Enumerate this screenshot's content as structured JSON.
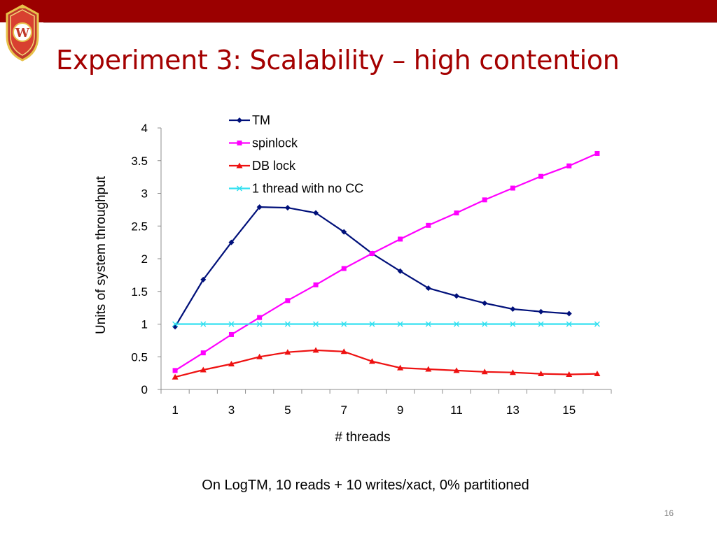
{
  "slide": {
    "title": "Experiment 3: Scalability – high contention",
    "caption": "On LogTM, 10 reads + 10 writes/xact, 0% partitioned",
    "page_number": "16",
    "logo_text": "W"
  },
  "colors": {
    "top_bar": "#9b0000",
    "title": "#a40000"
  },
  "chart_data": {
    "type": "line",
    "title": "",
    "xlabel": "# threads",
    "ylabel": "Units of system throughput",
    "x": [
      1,
      2,
      3,
      4,
      5,
      6,
      7,
      8,
      9,
      10,
      11,
      12,
      13,
      14,
      15,
      16
    ],
    "xticks": [
      1,
      3,
      5,
      7,
      9,
      11,
      13,
      15
    ],
    "xlim": [
      1,
      16
    ],
    "ylim": [
      0,
      4
    ],
    "yticks": [
      0,
      0.5,
      1,
      1.5,
      2,
      2.5,
      3,
      3.5,
      4
    ],
    "grid": false,
    "legend_position": "top-center",
    "series": [
      {
        "name": "TM",
        "color": "#00107a",
        "marker": "diamond",
        "values": [
          0.96,
          1.68,
          2.25,
          2.79,
          2.78,
          2.7,
          2.41,
          2.08,
          1.81,
          1.55,
          1.43,
          1.32,
          1.23,
          1.19,
          1.16,
          null
        ]
      },
      {
        "name": "spinlock",
        "color": "#ff00ff",
        "marker": "square",
        "values": [
          0.29,
          0.56,
          0.84,
          1.1,
          1.36,
          1.6,
          1.85,
          2.08,
          2.3,
          2.51,
          2.7,
          2.9,
          3.08,
          3.26,
          3.42,
          3.61
        ]
      },
      {
        "name": "DB lock",
        "color": "#ee1111",
        "marker": "triangle",
        "values": [
          0.19,
          0.3,
          0.39,
          0.5,
          0.57,
          0.6,
          0.58,
          0.43,
          0.33,
          0.31,
          0.29,
          0.27,
          0.26,
          0.24,
          0.23,
          0.24
        ]
      },
      {
        "name": "1 thread with no CC",
        "color": "#33e0f0",
        "marker": "x",
        "values": [
          1,
          1,
          1,
          1,
          1,
          1,
          1,
          1,
          1,
          1,
          1,
          1,
          1,
          1,
          1,
          1
        ]
      }
    ]
  }
}
